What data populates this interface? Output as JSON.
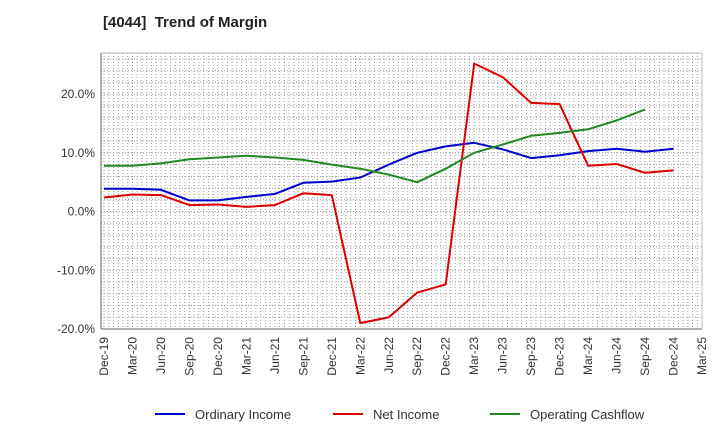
{
  "chart_data": {
    "type": "line",
    "title": "[4044]  Trend of Margin",
    "categories": [
      "Dec-19",
      "Mar-20",
      "Jun-20",
      "Sep-20",
      "Dec-20",
      "Mar-21",
      "Jun-21",
      "Sep-21",
      "Dec-21",
      "Mar-22",
      "Jun-22",
      "Sep-22",
      "Dec-22",
      "Mar-23",
      "Jun-23",
      "Sep-23",
      "Dec-23",
      "Mar-24",
      "Jun-24",
      "Sep-24",
      "Dec-24",
      "Mar-25"
    ],
    "ylim": [
      -20,
      27
    ],
    "yticks": [
      -20,
      -10,
      0,
      10,
      20
    ],
    "ytick_labels": [
      "-20.0%",
      "-10.0%",
      "0.0%",
      "10.0%",
      "20.0%"
    ],
    "grid": true,
    "legend_position": "bottom",
    "series": [
      {
        "name": "Ordinary Income",
        "color": "#0000cc",
        "values": [
          3.9,
          3.9,
          3.7,
          1.9,
          1.9,
          2.5,
          3.0,
          4.9,
          5.1,
          5.8,
          8.0,
          10.0,
          11.1,
          11.7,
          10.6,
          9.1,
          9.6,
          10.3,
          10.7,
          10.2,
          10.7,
          null
        ]
      },
      {
        "name": "Net Income",
        "color": "#dd0000",
        "values": [
          2.4,
          2.9,
          2.8,
          1.1,
          1.2,
          0.8,
          1.1,
          3.1,
          2.8,
          -19.0,
          -18.0,
          -13.8,
          -12.4,
          25.2,
          22.9,
          18.5,
          18.3,
          7.8,
          8.1,
          6.6,
          7.0,
          null
        ]
      },
      {
        "name": "Operating Cashflow",
        "color": "#228822",
        "values": [
          7.8,
          7.8,
          8.2,
          8.9,
          9.2,
          9.5,
          9.2,
          8.8,
          8.0,
          7.3,
          6.3,
          5.0,
          7.3,
          10.0,
          11.4,
          12.9,
          13.4,
          14.0,
          15.5,
          17.4,
          null,
          null
        ]
      }
    ]
  }
}
